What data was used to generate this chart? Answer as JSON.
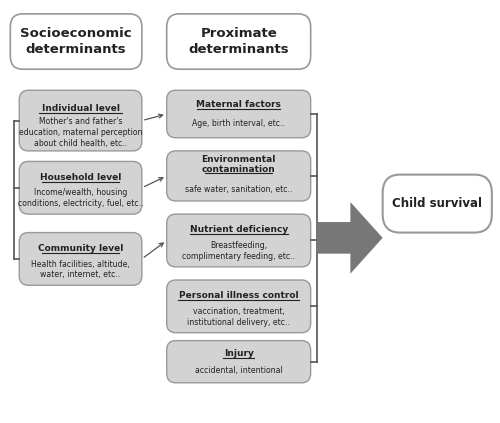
{
  "fig_width": 5.0,
  "fig_height": 4.23,
  "bg_color": "#ffffff",
  "socio_header": "Socioeconomic\ndeterminants",
  "prox_header": "Proximate\ndeterminants",
  "child_survival_text": "Child survival",
  "socio_boxes": [
    {
      "title": "Individual level",
      "body": "Mother's and father's\neducation, maternal perception\nabout child health, etc.."
    },
    {
      "title": "Household level",
      "body": "Income/wealth, housing\nconditions, electricity, fuel, etc.."
    },
    {
      "title": "Community level",
      "body": "Health facilities, altitude,\nwater, internet, etc.."
    }
  ],
  "prox_boxes": [
    {
      "title": "Maternal factors",
      "body": "Age, birth interval, etc.."
    },
    {
      "title": "Environmental\ncontamination",
      "body": "safe water, sanitation, etc.."
    },
    {
      "title": "Nutrient deficiency",
      "body": "Breastfeeding,\ncomplimentary feeding, etc.."
    },
    {
      "title": "Personal illness control",
      "body": "vaccination, treatment,\ninstitutional delivery, etc.."
    },
    {
      "title": "Injury",
      "body": "accidental, intentional"
    }
  ],
  "box_fill": "#d3d3d3",
  "box_edge": "#999999",
  "header_fill": "#ffffff",
  "header_edge": "#999999",
  "child_fill": "#ffffff",
  "child_edge": "#999999",
  "arrow_color": "#777777",
  "line_color": "#555555",
  "text_color": "#222222"
}
